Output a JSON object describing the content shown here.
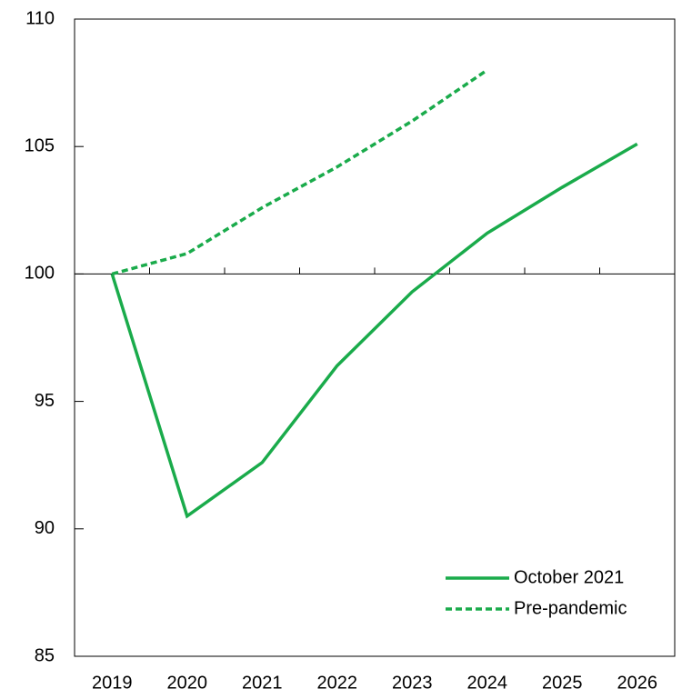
{
  "chart_data": {
    "type": "line",
    "categories": [
      "2019",
      "2020",
      "2021",
      "2022",
      "2023",
      "2024",
      "2025",
      "2026"
    ],
    "series": [
      {
        "name": "October 2021",
        "color": "#1aab4b",
        "dash": "solid",
        "values": [
          100,
          90.5,
          92.6,
          96.4,
          99.3,
          101.6,
          103.4,
          105.1
        ]
      },
      {
        "name": "Pre-pandemic",
        "color": "#1aab4b",
        "dash": "dashed",
        "values": [
          100,
          100.8,
          102.6,
          104.2,
          106.0,
          108.0,
          null,
          null
        ]
      }
    ],
    "ylim": [
      85,
      110
    ],
    "yticks": [
      85,
      90,
      95,
      100,
      105,
      110
    ],
    "x_axis_crosses": 100,
    "grid": false,
    "legend": "lower right"
  }
}
